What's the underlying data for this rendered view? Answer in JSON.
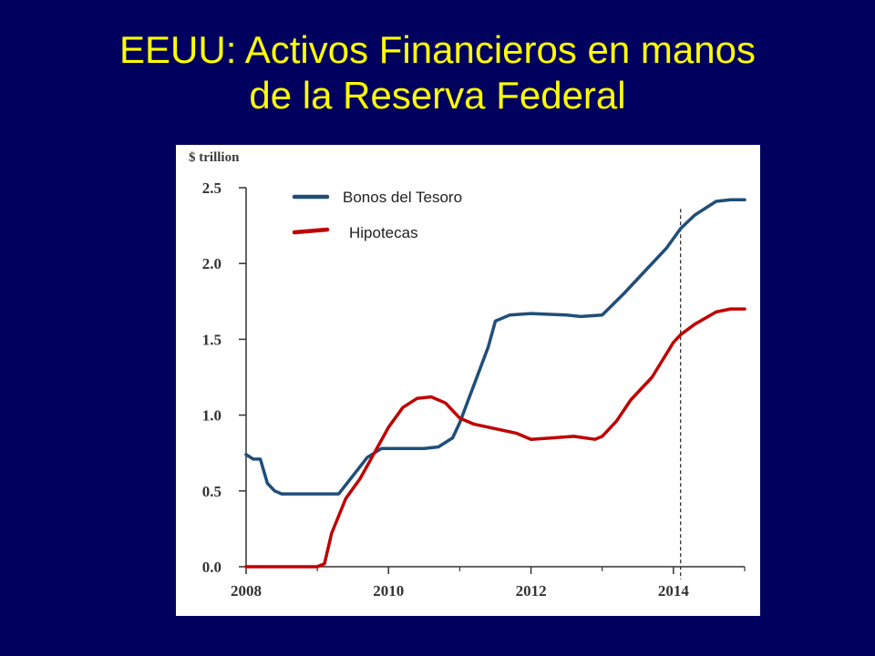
{
  "slide": {
    "title_line1": "EEUU: Activos Financieros en manos",
    "title_line2": "de la Reserva Federal",
    "title_color": "#ffff00",
    "background_color": "#00005e"
  },
  "chart_data": {
    "type": "line",
    "title": "",
    "ylabel": "$ trillion",
    "xlabel": "",
    "xlim": [
      2008,
      2015
    ],
    "ylim": [
      0,
      2.5
    ],
    "x_ticks": [
      "2008",
      "2010",
      "2012",
      "2014"
    ],
    "y_ticks": [
      "0.0",
      "0.5",
      "1.0",
      "1.5",
      "2.0",
      "2.5"
    ],
    "grid": false,
    "legend": "top-left",
    "vline": 2014.1,
    "series": [
      {
        "name": "Bonos del Tesoro",
        "color": "#1f4e79",
        "points": [
          [
            2008.0,
            0.74
          ],
          [
            2008.1,
            0.71
          ],
          [
            2008.2,
            0.71
          ],
          [
            2008.3,
            0.55
          ],
          [
            2008.4,
            0.5
          ],
          [
            2008.5,
            0.48
          ],
          [
            2009.0,
            0.48
          ],
          [
            2009.3,
            0.48
          ],
          [
            2009.5,
            0.6
          ],
          [
            2009.7,
            0.72
          ],
          [
            2009.9,
            0.78
          ],
          [
            2010.5,
            0.78
          ],
          [
            2010.7,
            0.79
          ],
          [
            2010.9,
            0.85
          ],
          [
            2011.0,
            0.95
          ],
          [
            2011.2,
            1.2
          ],
          [
            2011.4,
            1.45
          ],
          [
            2011.5,
            1.62
          ],
          [
            2011.7,
            1.66
          ],
          [
            2012.0,
            1.67
          ],
          [
            2012.5,
            1.66
          ],
          [
            2012.7,
            1.65
          ],
          [
            2013.0,
            1.66
          ],
          [
            2013.3,
            1.8
          ],
          [
            2013.6,
            1.95
          ],
          [
            2013.9,
            2.1
          ],
          [
            2014.1,
            2.23
          ],
          [
            2014.3,
            2.32
          ],
          [
            2014.6,
            2.41
          ],
          [
            2014.8,
            2.42
          ],
          [
            2015.0,
            2.42
          ]
        ]
      },
      {
        "name": "Hipotecas",
        "color": "#c00000",
        "points": [
          [
            2008.0,
            0.0
          ],
          [
            2009.0,
            0.0
          ],
          [
            2009.1,
            0.02
          ],
          [
            2009.2,
            0.22
          ],
          [
            2009.4,
            0.45
          ],
          [
            2009.6,
            0.58
          ],
          [
            2009.8,
            0.75
          ],
          [
            2010.0,
            0.92
          ],
          [
            2010.2,
            1.05
          ],
          [
            2010.4,
            1.11
          ],
          [
            2010.6,
            1.12
          ],
          [
            2010.8,
            1.08
          ],
          [
            2011.0,
            0.98
          ],
          [
            2011.2,
            0.94
          ],
          [
            2011.5,
            0.91
          ],
          [
            2011.8,
            0.88
          ],
          [
            2012.0,
            0.84
          ],
          [
            2012.3,
            0.85
          ],
          [
            2012.6,
            0.86
          ],
          [
            2012.9,
            0.84
          ],
          [
            2013.0,
            0.86
          ],
          [
            2013.2,
            0.96
          ],
          [
            2013.4,
            1.1
          ],
          [
            2013.7,
            1.25
          ],
          [
            2014.0,
            1.48
          ],
          [
            2014.1,
            1.53
          ],
          [
            2014.3,
            1.6
          ],
          [
            2014.6,
            1.68
          ],
          [
            2014.8,
            1.7
          ],
          [
            2015.0,
            1.7
          ]
        ]
      }
    ]
  }
}
